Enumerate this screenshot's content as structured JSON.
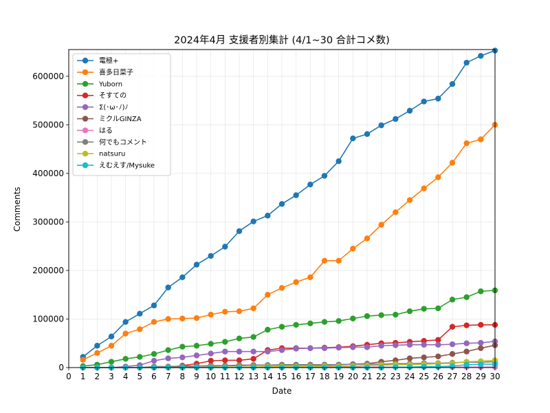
{
  "chart_data": {
    "type": "line",
    "title": "2024年4月 支援者別集計 (4/1~30 合計コメ数)",
    "xlabel": "Date",
    "ylabel": "Comments",
    "xlim": [
      0,
      30
    ],
    "ylim": [
      0,
      655000
    ],
    "x_ticks": [
      0,
      1,
      2,
      3,
      4,
      5,
      6,
      7,
      8,
      9,
      10,
      11,
      12,
      13,
      14,
      15,
      16,
      17,
      18,
      19,
      20,
      21,
      22,
      23,
      24,
      25,
      26,
      27,
      28,
      29,
      30
    ],
    "y_ticks": [
      0,
      100000,
      200000,
      300000,
      400000,
      500000,
      600000
    ],
    "grid": true,
    "legend_position": "top-left",
    "x": [
      1,
      2,
      3,
      4,
      5,
      6,
      7,
      8,
      9,
      10,
      11,
      12,
      13,
      14,
      15,
      16,
      17,
      18,
      19,
      20,
      21,
      22,
      23,
      24,
      25,
      26,
      27,
      28,
      29,
      30
    ],
    "series": [
      {
        "name": "電極+",
        "color": "#1f77b4",
        "values": [
          22000,
          45000,
          64000,
          94000,
          111000,
          128000,
          165000,
          186000,
          212000,
          230000,
          249000,
          281000,
          301000,
          313000,
          337000,
          355000,
          377000,
          395000,
          425000,
          472000,
          481000,
          499000,
          512000,
          529000,
          548000,
          554000,
          584000,
          628000,
          642000,
          653000
        ]
      },
      {
        "name": "喜多日菜子",
        "color": "#ff7f0e",
        "values": [
          16000,
          30000,
          45000,
          70000,
          79000,
          94000,
          100000,
          101000,
          102000,
          109000,
          115000,
          116000,
          122000,
          150000,
          164000,
          176000,
          186000,
          220000,
          220000,
          245000,
          266000,
          294000,
          320000,
          345000,
          369000,
          392000,
          422000,
          462000,
          470000,
          500000
        ]
      },
      {
        "name": "Yuborn",
        "color": "#2ca02c",
        "values": [
          3000,
          6000,
          12000,
          18000,
          22000,
          28000,
          36000,
          43000,
          45000,
          49000,
          53000,
          60000,
          63000,
          78000,
          84000,
          88000,
          91000,
          94000,
          96000,
          101000,
          106000,
          108000,
          109000,
          116000,
          121000,
          122000,
          140000,
          145000,
          157000,
          159000
        ]
      },
      {
        "name": "そすての",
        "color": "#d62728",
        "values": [
          0,
          0,
          0,
          0,
          0,
          0,
          0,
          4000,
          8000,
          14000,
          15000,
          15000,
          18000,
          36000,
          40000,
          40000,
          40000,
          41000,
          42000,
          44000,
          47000,
          50000,
          51000,
          53000,
          55000,
          57000,
          84000,
          87000,
          88000,
          88000
        ]
      },
      {
        "name": "Σ(･ω･ﾉ)ﾉ",
        "color": "#9467bd",
        "values": [
          0,
          0,
          0,
          2000,
          5000,
          14000,
          19000,
          21000,
          25000,
          29000,
          33000,
          33000,
          33000,
          33000,
          36000,
          39000,
          40000,
          40000,
          41000,
          42000,
          42000,
          45000,
          46000,
          47000,
          47000,
          47000,
          48000,
          50000,
          51000,
          54000
        ]
      },
      {
        "name": "ミクルGINZA",
        "color": "#8c564b",
        "values": [
          0,
          0,
          0,
          0,
          0,
          0,
          2000,
          3000,
          3000,
          4000,
          4000,
          4000,
          5000,
          5000,
          5000,
          5000,
          5000,
          5000,
          6000,
          7000,
          8000,
          12000,
          15000,
          19000,
          21000,
          23000,
          28000,
          33000,
          40000,
          46000
        ]
      },
      {
        "name": "はる",
        "color": "#e377c2",
        "values": [
          0,
          0,
          0,
          0,
          0,
          0,
          0,
          0,
          0,
          0,
          1000,
          1000,
          1000,
          1000,
          1000,
          1000,
          1000,
          1000,
          1000,
          1000,
          1000,
          1000,
          1000,
          1000,
          1000,
          1000,
          1000,
          1000,
          1000,
          1000
        ]
      },
      {
        "name": "何でもコメント",
        "color": "#7f7f7f",
        "values": [
          0,
          0,
          0,
          0,
          0,
          2000,
          2000,
          2000,
          3000,
          3000,
          4000,
          5000,
          5000,
          5000,
          6000,
          6000,
          6000,
          6000,
          6000,
          7000,
          7000,
          7000,
          8000,
          8000,
          9000,
          9000,
          10000,
          11000,
          11000,
          12000
        ]
      },
      {
        "name": "natsuru",
        "color": "#bcbd22",
        "values": [
          0,
          0,
          0,
          0,
          0,
          0,
          0,
          0,
          0,
          1000,
          1000,
          1000,
          1000,
          2000,
          2000,
          2000,
          2000,
          3000,
          3000,
          3000,
          4000,
          5000,
          6000,
          6000,
          7000,
          8000,
          9000,
          12000,
          13000,
          15000
        ]
      },
      {
        "name": "えむえす/Mysuke",
        "color": "#17becf",
        "values": [
          0,
          0,
          0,
          0,
          0,
          0,
          0,
          0,
          0,
          0,
          0,
          0,
          0,
          0,
          0,
          0,
          0,
          0,
          0,
          0,
          0,
          0,
          1000,
          1000,
          2000,
          2000,
          3000,
          6000,
          7000,
          7000
        ]
      }
    ]
  }
}
